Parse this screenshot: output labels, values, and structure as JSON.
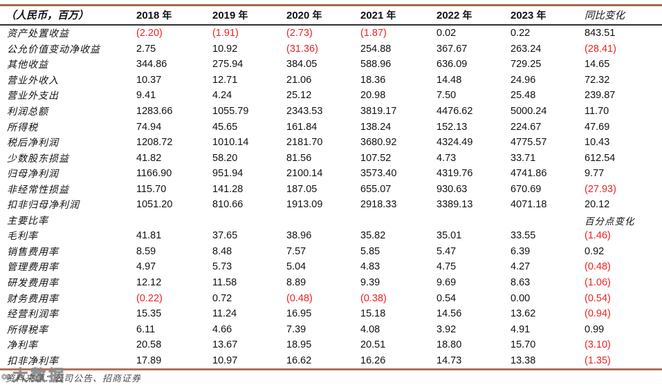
{
  "table": {
    "unit_header": "（人民币，百万）",
    "years": [
      {
        "num": "2018",
        "suffix": "年"
      },
      {
        "num": "2019",
        "suffix": "年"
      },
      {
        "num": "2020",
        "suffix": "年"
      },
      {
        "num": "2021",
        "suffix": "年"
      },
      {
        "num": "2022",
        "suffix": "年"
      },
      {
        "num": "2023",
        "suffix": "年"
      }
    ],
    "change_header": "同比变化",
    "rows": [
      {
        "label": "资产处置收益",
        "values": [
          "(2.20)",
          "(1.91)",
          "(2.73)",
          "(1.87)",
          "0.02",
          "0.22"
        ],
        "change": "843.51"
      },
      {
        "label": "公允价值变动净收益",
        "values": [
          "2.75",
          "10.92",
          "(31.36)",
          "254.88",
          "367.67",
          "263.24"
        ],
        "change": "(28.41)"
      },
      {
        "label": "其他收益",
        "values": [
          "344.86",
          "275.94",
          "384.05",
          "588.96",
          "636.09",
          "729.25"
        ],
        "change": "14.65"
      },
      {
        "label": "营业外收入",
        "values": [
          "10.37",
          "12.71",
          "21.06",
          "18.36",
          "14.48",
          "24.96"
        ],
        "change": "72.32"
      },
      {
        "label": "营业外支出",
        "values": [
          "9.41",
          "4.24",
          "25.12",
          "20.98",
          "7.50",
          "25.48"
        ],
        "change": "239.87"
      },
      {
        "label": "利润总额",
        "values": [
          "1283.66",
          "1055.79",
          "2343.53",
          "3819.17",
          "4476.62",
          "5000.24"
        ],
        "change": "11.70"
      },
      {
        "label": "所得税",
        "values": [
          "74.94",
          "45.65",
          "161.84",
          "138.24",
          "152.13",
          "224.67"
        ],
        "change": "47.69"
      },
      {
        "label": "税后净利润",
        "values": [
          "1208.72",
          "1010.14",
          "2181.70",
          "3680.92",
          "4324.49",
          "4775.57"
        ],
        "change": "10.43"
      },
      {
        "label": "少数股东损益",
        "values": [
          "41.82",
          "58.20",
          "81.56",
          "107.52",
          "4.73",
          "33.71"
        ],
        "change": "612.54"
      },
      {
        "label": "归母净利润",
        "values": [
          "1166.90",
          "951.94",
          "2100.14",
          "3573.40",
          "4319.76",
          "4741.86"
        ],
        "change": "9.77"
      },
      {
        "label": "非经常性损益",
        "values": [
          "115.70",
          "141.28",
          "187.05",
          "655.07",
          "930.63",
          "670.69"
        ],
        "change": "(27.93)"
      },
      {
        "label": "扣非归母净利润",
        "values": [
          "1051.20",
          "810.66",
          "1913.09",
          "2918.33",
          "3389.13",
          "4071.18"
        ],
        "change": "20.12"
      },
      {
        "label": "主要比率",
        "values": [
          "",
          "",
          "",
          "",
          "",
          ""
        ],
        "change": "百分点变化"
      },
      {
        "label": "毛利率",
        "values": [
          "41.81",
          "37.65",
          "38.96",
          "35.82",
          "35.01",
          "33.55"
        ],
        "change": "(1.46)"
      },
      {
        "label": "销售费用率",
        "values": [
          "8.59",
          "8.48",
          "7.57",
          "5.85",
          "5.47",
          "6.39"
        ],
        "change": "0.92"
      },
      {
        "label": "管理费用率",
        "values": [
          "4.97",
          "5.73",
          "5.04",
          "4.83",
          "4.75",
          "4.27"
        ],
        "change": "(0.48)"
      },
      {
        "label": "研发费用率",
        "values": [
          "12.12",
          "11.58",
          "8.89",
          "9.39",
          "9.69",
          "8.63"
        ],
        "change": "(1.06)"
      },
      {
        "label": "财务费用率",
        "values": [
          "(0.22)",
          "0.72",
          "(0.48)",
          "(0.38)",
          "0.54",
          "0.00"
        ],
        "change": "(0.54)"
      },
      {
        "label": "经营利润率",
        "values": [
          "15.35",
          "11.24",
          "16.95",
          "15.18",
          "14.56",
          "13.62"
        ],
        "change": "(0.94)"
      },
      {
        "label": "所得税率",
        "values": [
          "6.11",
          "4.66",
          "7.39",
          "4.08",
          "3.92",
          "4.91"
        ],
        "change": "0.99"
      },
      {
        "label": "净利率",
        "values": [
          "20.58",
          "13.67",
          "18.95",
          "20.51",
          "18.80",
          "15.70"
        ],
        "change": "(3.10)"
      },
      {
        "label": "扣非净利率",
        "values": [
          "17.89",
          "10.97",
          "16.62",
          "16.26",
          "14.73",
          "13.38"
        ],
        "change": "(1.35)"
      }
    ]
  },
  "footer": {
    "source_label": "资料来源：公司公告、招商证券"
  },
  "watermark": {
    "logo": "∞",
    "text": "大数据"
  },
  "colors": {
    "negative_red": "#ee2222",
    "top_border": "#a5684a",
    "bottom_border": "#b0735a",
    "header_rule": "#2f2f2f"
  }
}
